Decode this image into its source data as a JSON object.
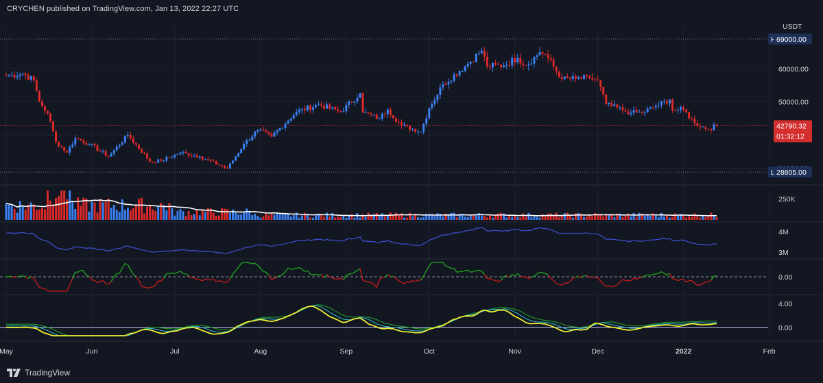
{
  "header": {
    "text": "CRYCHEN published on TradingView.com, Jan 13, 2022 22:27 UTC"
  },
  "footer": {
    "brand": "TradingView"
  },
  "colors": {
    "background": "#131722",
    "grid": "#1f2330",
    "up": "#3b82f6",
    "down": "#e02a2a",
    "price_line": "#e02a2a",
    "volume_ma": "#ffffff",
    "obv_line": "#3f51d8",
    "osc_up": "#20a020",
    "osc_down": "#c41b1b",
    "yellow_line": "#f0f032",
    "cyan_line": "#2bb5c8",
    "green_line": "#21a02b",
    "tag_bg": "#1e3057",
    "price_tag_bg": "#d32f2f"
  },
  "chart_data": [
    {
      "type": "candlestick",
      "title": "",
      "currency": "USDT",
      "xlabel": "",
      "ylabel": "",
      "ylim": [
        28000,
        70000
      ],
      "y_ticks": [
        "60000.00",
        "50000.00",
        "30000.00"
      ],
      "x_ticks": [
        "May",
        "Jun",
        "Jul",
        "Aug",
        "Sep",
        "Oct",
        "Nov",
        "Dec",
        "2022",
        "Feb"
      ],
      "date_range": [
        "2021-05-01",
        "2022-01-13"
      ],
      "high_label": "High",
      "high_value": "69000.00",
      "low_label": "Low",
      "low_value": "28805.00",
      "last_price": "42790.32",
      "countdown": "01:32:12",
      "price_anchors": [
        [
          "2021-05-01",
          57800
        ],
        [
          "2021-05-07",
          58500
        ],
        [
          "2021-05-11",
          56500
        ],
        [
          "2021-05-13",
          50000
        ],
        [
          "2021-05-16",
          46500
        ],
        [
          "2021-05-19",
          38000
        ],
        [
          "2021-05-23",
          34700
        ],
        [
          "2021-05-26",
          39000
        ],
        [
          "2021-05-31",
          37300
        ],
        [
          "2021-06-07",
          33500
        ],
        [
          "2021-06-14",
          40000
        ],
        [
          "2021-06-22",
          32000
        ],
        [
          "2021-06-26",
          32200
        ],
        [
          "2021-07-03",
          34700
        ],
        [
          "2021-07-10",
          33500
        ],
        [
          "2021-07-20",
          29800
        ],
        [
          "2021-07-26",
          37300
        ],
        [
          "2021-07-31",
          41500
        ],
        [
          "2021-08-05",
          39500
        ],
        [
          "2021-08-14",
          47000
        ],
        [
          "2021-08-22",
          49200
        ],
        [
          "2021-08-30",
          47000
        ],
        [
          "2021-09-06",
          52600
        ],
        [
          "2021-09-07",
          46800
        ],
        [
          "2021-09-13",
          44900
        ],
        [
          "2021-09-16",
          47700
        ],
        [
          "2021-09-21",
          42800
        ],
        [
          "2021-09-28",
          41000
        ],
        [
          "2021-10-01",
          48100
        ],
        [
          "2021-10-06",
          55300
        ],
        [
          "2021-10-15",
          61500
        ],
        [
          "2021-10-20",
          65500
        ],
        [
          "2021-10-22",
          60700
        ],
        [
          "2021-10-28",
          61000
        ],
        [
          "2021-11-02",
          63300
        ],
        [
          "2021-11-05",
          61000
        ],
        [
          "2021-11-10",
          65000
        ],
        [
          "2021-11-12",
          64300
        ],
        [
          "2021-11-18",
          56900
        ],
        [
          "2021-11-23",
          57000
        ],
        [
          "2021-11-28",
          57200
        ],
        [
          "2021-12-01",
          56500
        ],
        [
          "2021-12-04",
          49300
        ],
        [
          "2021-12-10",
          47500
        ],
        [
          "2021-12-13",
          46700
        ],
        [
          "2021-12-17",
          46700
        ],
        [
          "2021-12-22",
          48800
        ],
        [
          "2021-12-27",
          50700
        ],
        [
          "2021-12-28",
          47500
        ],
        [
          "2022-01-01",
          47700
        ],
        [
          "2022-01-05",
          43500
        ],
        [
          "2022-01-10",
          41800
        ],
        [
          "2022-01-13",
          42790
        ]
      ]
    },
    {
      "type": "bar",
      "title": "",
      "y_ticks": [
        "250K"
      ],
      "note": "volume with white moving average"
    },
    {
      "type": "line",
      "title": "",
      "y_ticks": [
        "4M",
        "3M"
      ]
    },
    {
      "type": "line",
      "title": "",
      "y_ticks": [
        "0.00"
      ]
    },
    {
      "type": "line",
      "title": "",
      "y_ticks": [
        "4.00",
        "0.00"
      ]
    }
  ]
}
